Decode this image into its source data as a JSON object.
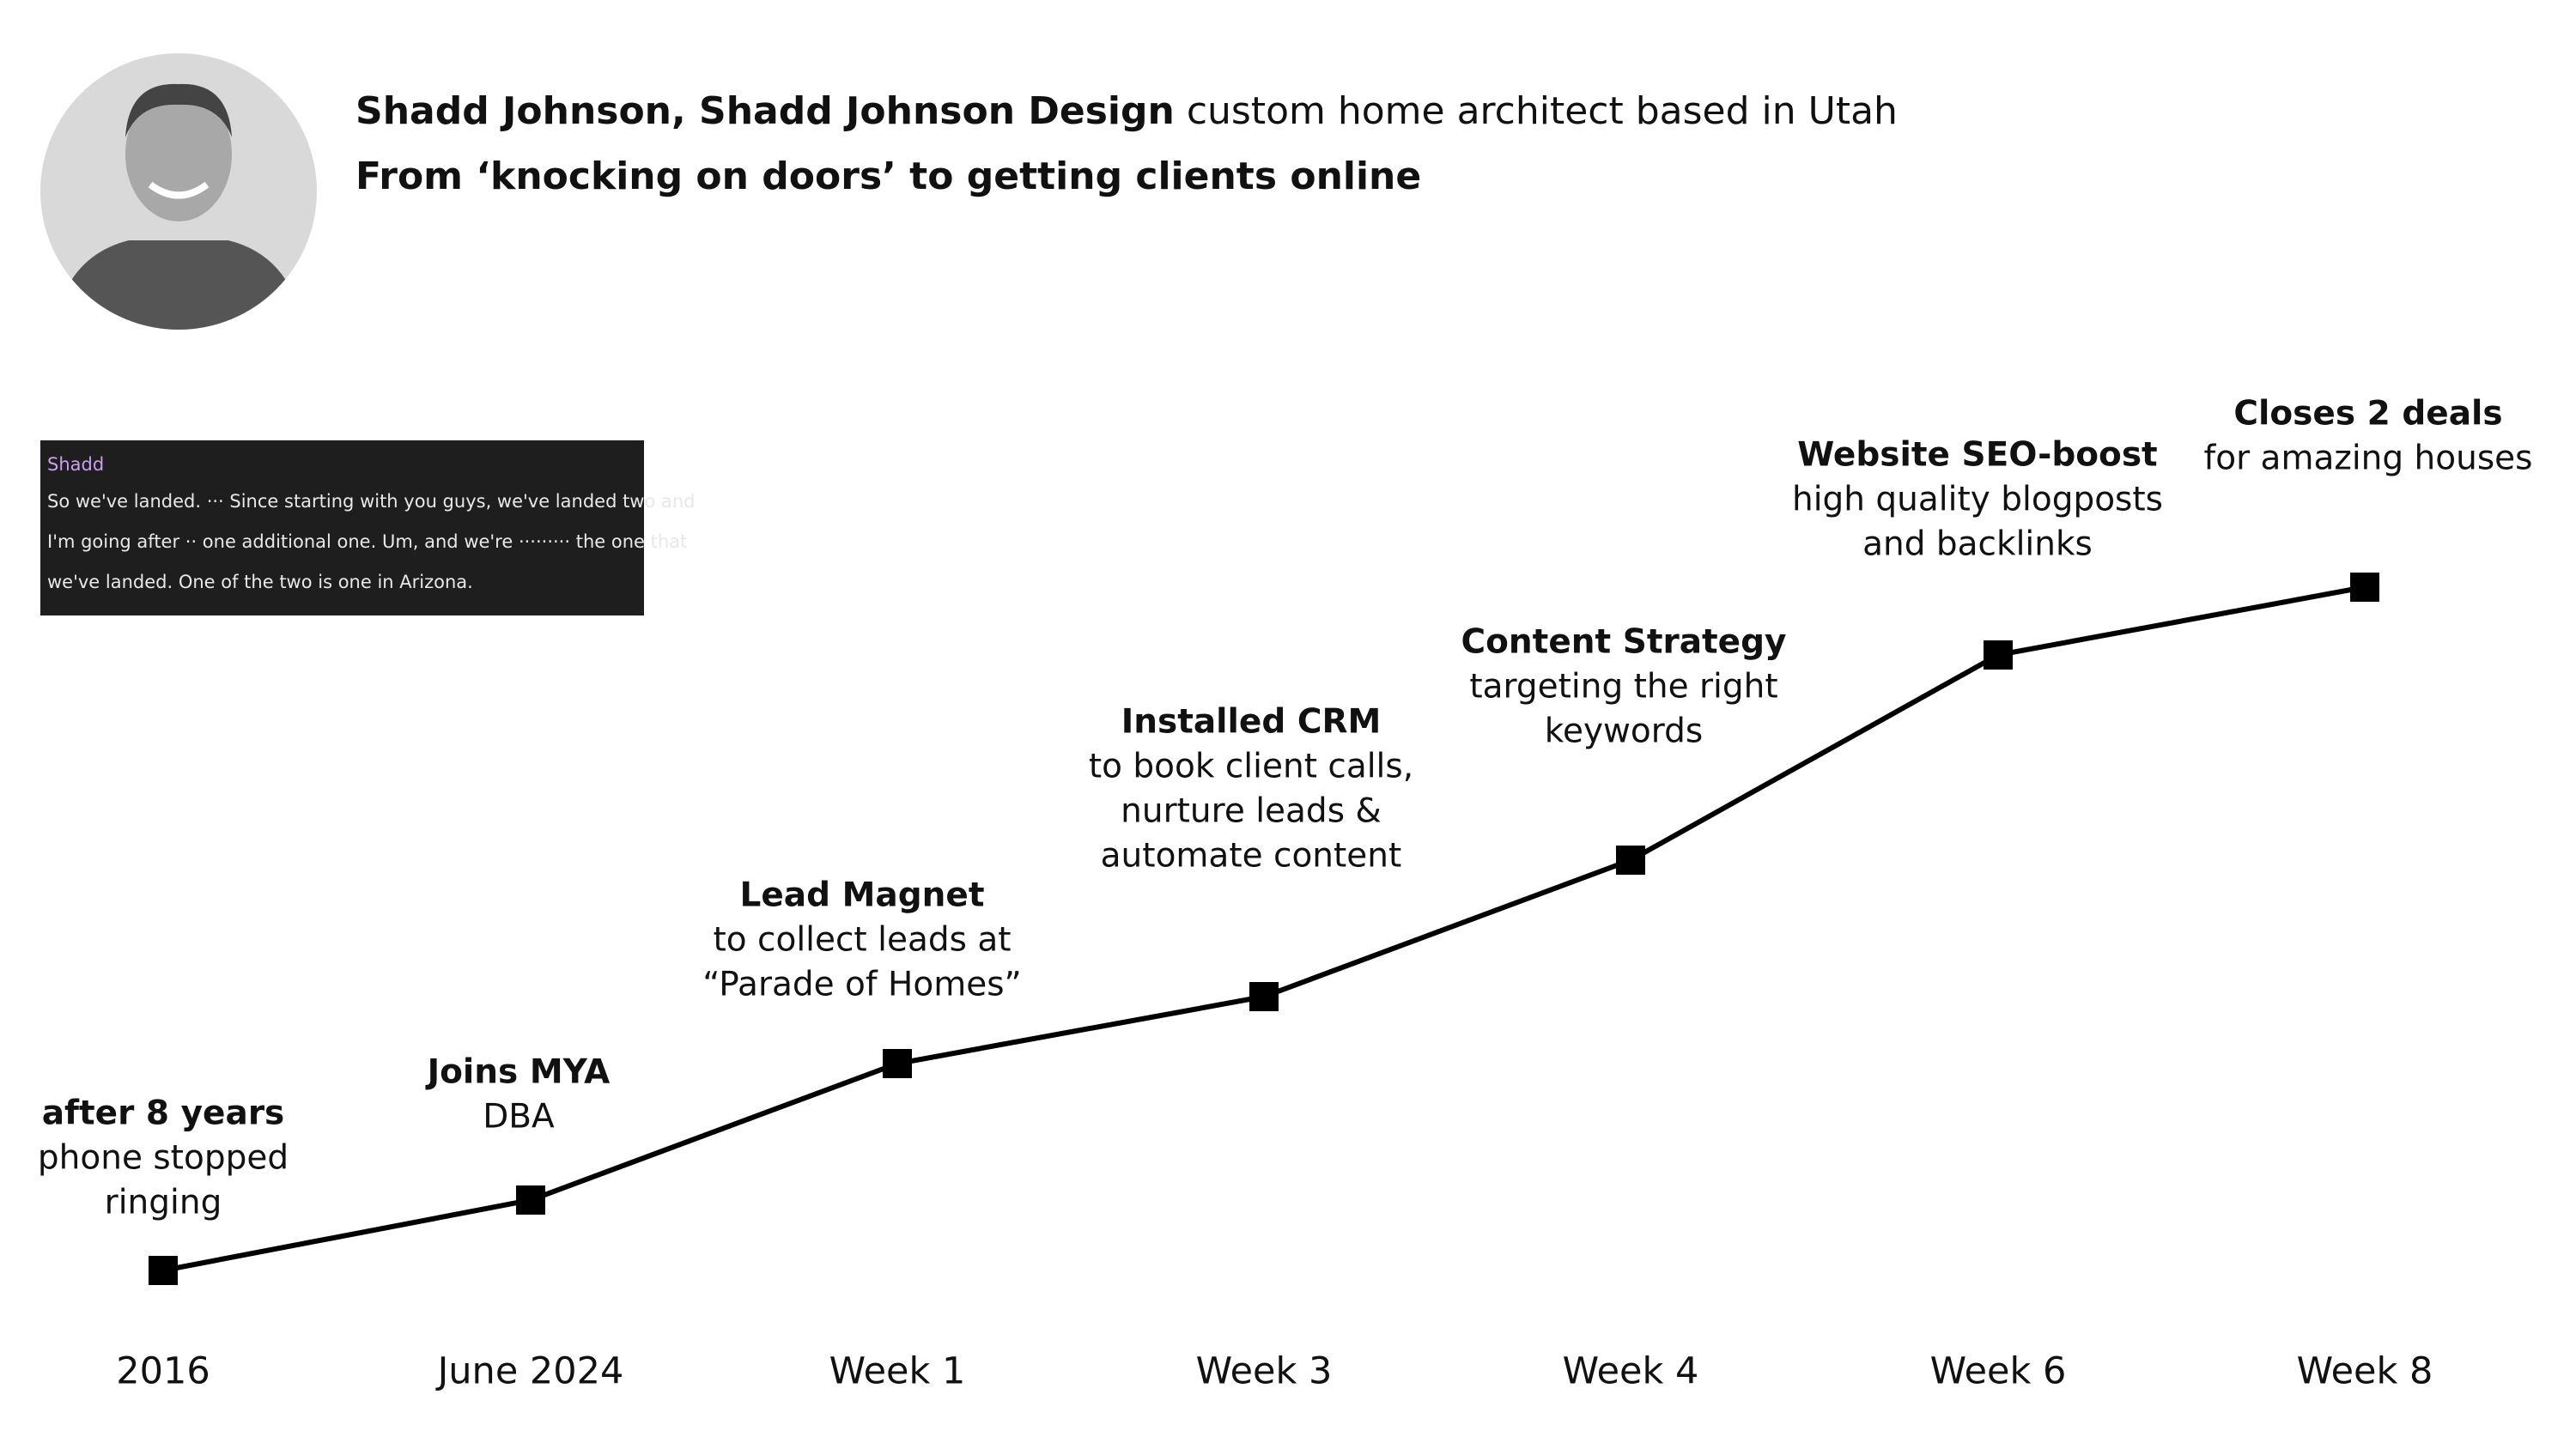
{
  "header": {
    "name": "Shadd Johnson, Shadd Johnson Design",
    "role": "custom home architect based in Utah",
    "subtitle": "From ‘knocking on doors’ to getting clients online"
  },
  "quote": {
    "speaker": "Shadd",
    "lines": [
      "So we've landed. ··· Since starting with you guys, we've landed two and",
      "I'm going after ·· one additional one. Um, and we're ········· the one that",
      "we've landed. One of the two is one in Arizona."
    ]
  },
  "milestones": [
    {
      "date": "2016",
      "title": "after 8 years",
      "text": [
        "phone stopped",
        "ringing"
      ]
    },
    {
      "date": "June 2024",
      "title": "Joins MYA",
      "text": [
        "DBA"
      ]
    },
    {
      "date": "Week 1",
      "title": "Lead Magnet",
      "text": [
        "to collect leads at",
        "“Parade of Homes”"
      ]
    },
    {
      "date": "Week 3",
      "title": "Installed CRM",
      "text": [
        "to book client calls,",
        "nurture leads &",
        "automate content"
      ]
    },
    {
      "date": "Week 4",
      "title": "Content Strategy",
      "text": [
        "targeting the right",
        "keywords"
      ]
    },
    {
      "date": "Week 6",
      "title": "Website SEO-boost",
      "text": [
        "high quality blogposts",
        "and backlinks"
      ]
    },
    {
      "date": "Week 8",
      "title": "Closes 2 deals",
      "text": [
        "for amazing houses"
      ]
    }
  ]
}
